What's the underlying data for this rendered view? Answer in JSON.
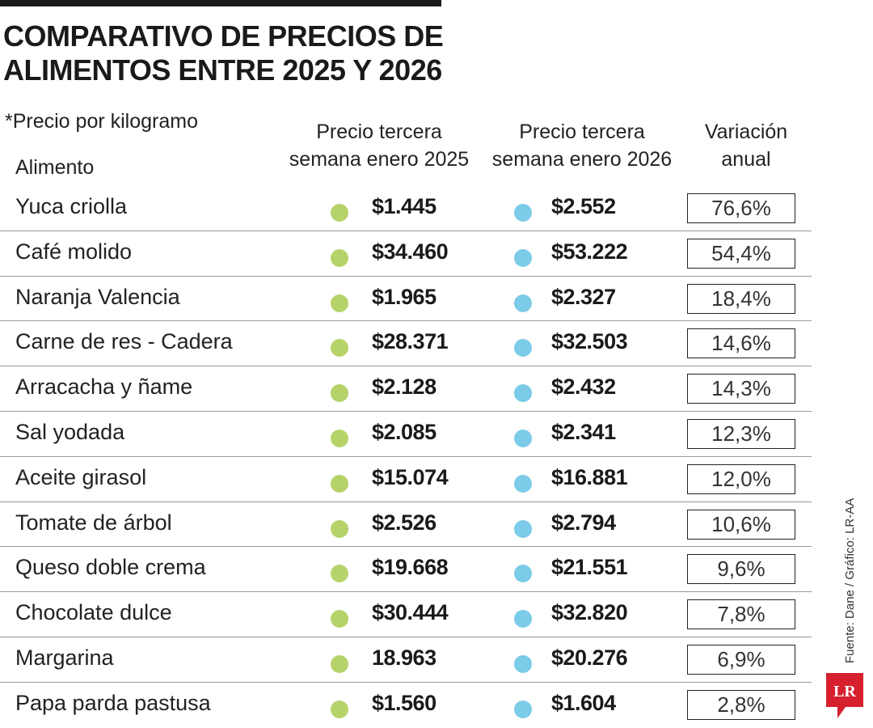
{
  "header": {
    "title_lines": [
      "COMPARATIVO DE PRECIOS DE",
      "ALIMENTOS ENTRE 2025 Y 2026"
    ],
    "note": "*Precio por kilogramo"
  },
  "columns": {
    "alimento": "Alimento",
    "price_2025": [
      "Precio tercera",
      "semana enero 2025"
    ],
    "price_2026": [
      "Precio tercera",
      "semana enero 2026"
    ],
    "variation": [
      "Variación",
      "anual"
    ]
  },
  "colors": {
    "dot_2025": "#b6d36a",
    "dot_2026": "#7ccbe8",
    "logo_red": "#d6202e"
  },
  "chart_data": {
    "type": "table",
    "title": "COMPARATIVO DE PRECIOS DE ALIMENTOS ENTRE 2025 Y 2026",
    "columns": [
      "Alimento",
      "Precio tercera semana enero 2025",
      "Precio tercera semana enero 2026",
      "Variación anual"
    ],
    "rows": [
      {
        "alimento": "Yuca criolla",
        "p2025": "$1.445",
        "p2026": "$2.552",
        "variacion": "76,6%"
      },
      {
        "alimento": "Café molido",
        "p2025": "$34.460",
        "p2026": "$53.222",
        "variacion": "54,4%"
      },
      {
        "alimento": "Naranja Valencia",
        "p2025": "$1.965",
        "p2026": "$2.327",
        "variacion": "18,4%"
      },
      {
        "alimento": "Carne de res - Cadera",
        "p2025": "$28.371",
        "p2026": "$32.503",
        "variacion": "14,6%"
      },
      {
        "alimento": "Arracacha y ñame",
        "p2025": "$2.128",
        "p2026": "$2.432",
        "variacion": "14,3%"
      },
      {
        "alimento": "Sal yodada",
        "p2025": "$2.085",
        "p2026": "$2.341",
        "variacion": "12,3%"
      },
      {
        "alimento": "Aceite girasol",
        "p2025": "$15.074",
        "p2026": "$16.881",
        "variacion": "12,0%"
      },
      {
        "alimento": "Tomate de árbol",
        "p2025": "$2.526",
        "p2026": "$2.794",
        "variacion": "10,6%"
      },
      {
        "alimento": "Queso doble crema",
        "p2025": "$19.668",
        "p2026": "$21.551",
        "variacion": "9,6%"
      },
      {
        "alimento": "Chocolate dulce",
        "p2025": "$30.444",
        "p2026": "$32.820",
        "variacion": "7,8%"
      },
      {
        "alimento": "Margarina",
        "p2025": "18.963",
        "p2026": "$20.276",
        "variacion": "6,9%"
      },
      {
        "alimento": "Papa parda pastusa",
        "p2025": "$1.560",
        "p2026": "$1.604",
        "variacion": "2,8%"
      }
    ]
  },
  "footer": {
    "source": "Fuente: Dane / Gráfico: LR-AA",
    "logo_text": "LR"
  }
}
